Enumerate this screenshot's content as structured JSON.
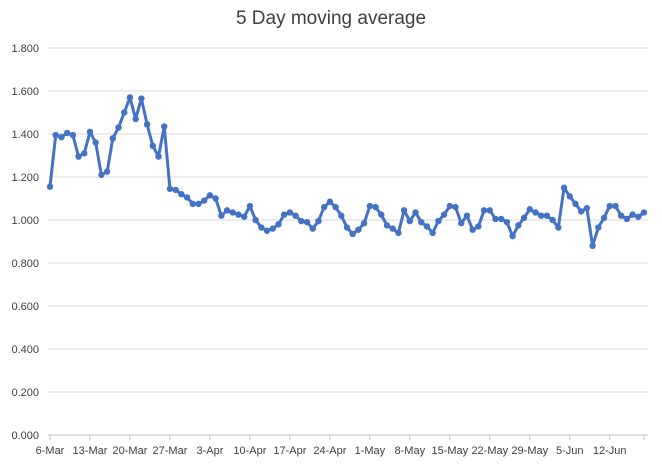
{
  "chart_data": {
    "type": "line",
    "title": "5 Day moving average",
    "xlabel": "",
    "ylabel": "",
    "ylim": [
      0,
      1.8
    ],
    "ytick_step": 0.2,
    "ytick_labels": [
      "0.000",
      "0.200",
      "0.400",
      "0.600",
      "0.800",
      "1.000",
      "1.200",
      "1.400",
      "1.600",
      "1.800"
    ],
    "xtick_labels": [
      "6-Mar",
      "13-Mar",
      "20-Mar",
      "27-Mar",
      "3-Apr",
      "10-Apr",
      "17-Apr",
      "24-Apr",
      "1-May",
      "8-May",
      "15-May",
      "22-May",
      "29-May",
      "5-Jun",
      "12-Jun"
    ],
    "x_start": "6-Mar",
    "x_end": "18-Jun",
    "grid": true,
    "legend": "none",
    "line_color": "#4472C4",
    "series": [
      {
        "values": [
          1.155,
          1.395,
          1.385,
          1.405,
          1.395,
          1.295,
          1.31,
          1.41,
          1.36,
          1.21,
          1.225,
          1.38,
          1.43,
          1.5,
          1.57,
          1.47,
          1.565,
          1.445,
          1.345,
          1.295,
          1.435,
          1.145,
          1.14,
          1.12,
          1.105,
          1.075,
          1.075,
          1.09,
          1.115,
          1.1,
          1.02,
          1.045,
          1.035,
          1.025,
          1.015,
          1.065,
          1.0,
          0.965,
          0.95,
          0.96,
          0.98,
          1.025,
          1.035,
          1.02,
          0.995,
          0.99,
          0.96,
          0.995,
          1.06,
          1.085,
          1.06,
          1.02,
          0.965,
          0.935,
          0.955,
          0.985,
          1.065,
          1.06,
          1.025,
          0.975,
          0.96,
          0.94,
          1.045,
          0.995,
          1.035,
          0.99,
          0.97,
          0.94,
          0.995,
          1.025,
          1.065,
          1.06,
          0.985,
          1.02,
          0.955,
          0.97,
          1.045,
          1.045,
          1.005,
          1.005,
          0.99,
          0.925,
          0.975,
          1.01,
          1.05,
          1.035,
          1.02,
          1.02,
          1.0,
          0.965,
          1.15,
          1.11,
          1.075,
          1.04,
          1.055,
          0.88,
          0.965,
          1.01,
          1.065,
          1.065,
          1.02,
          1.005,
          1.025,
          1.015,
          1.035
        ]
      }
    ]
  }
}
